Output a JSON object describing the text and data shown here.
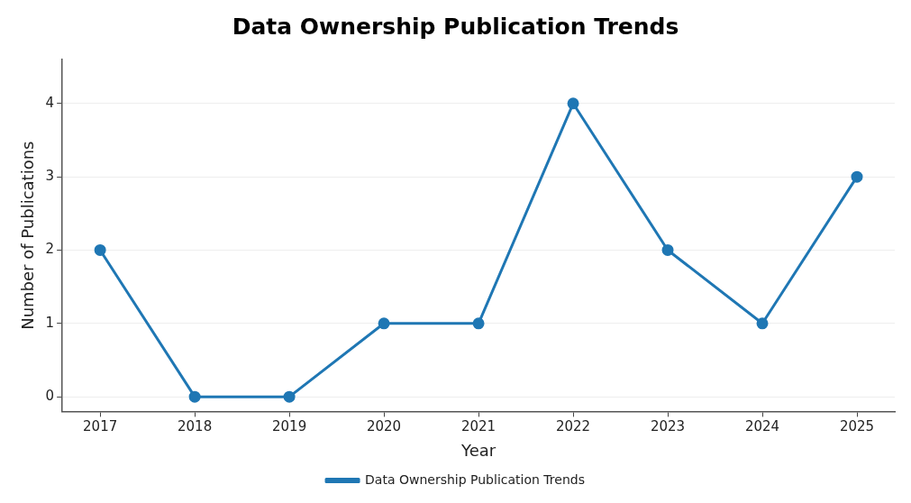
{
  "chart_data": {
    "type": "line",
    "title": "Data Ownership Publication Trends",
    "xlabel": "Year",
    "ylabel": "Number of Publications",
    "x": [
      2017,
      2018,
      2019,
      2020,
      2021,
      2022,
      2023,
      2024,
      2025
    ],
    "series": [
      {
        "name": "Data Ownership Publication Trends",
        "color": "#1f77b4",
        "values": [
          2,
          0,
          0,
          1,
          1,
          4,
          2,
          1,
          3
        ]
      }
    ],
    "xlim": [
      2016.6,
      2025.4
    ],
    "xticks": [
      2017,
      2018,
      2019,
      2020,
      2021,
      2022,
      2023,
      2024,
      2025
    ],
    "ylim": [
      -0.2,
      4.6
    ],
    "yticks": [
      0,
      1,
      2,
      3,
      4
    ],
    "grid": "y",
    "legend": "bottom",
    "marker": "circle",
    "line_style": "solid"
  }
}
